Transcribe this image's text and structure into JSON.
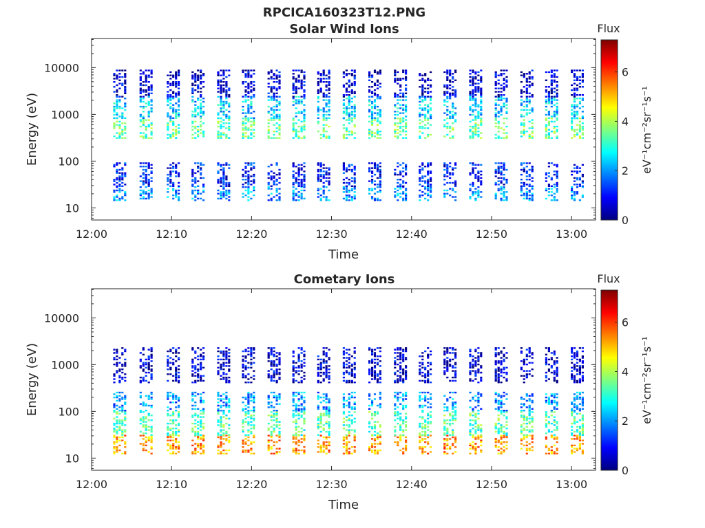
{
  "figure": {
    "title": "RPCICA160323T12.PNG"
  },
  "chart_data": [
    {
      "type": "heatmap",
      "title": "Solar Wind Ions",
      "xlabel": "Time",
      "ylabel": "Energy (eV)",
      "x_unit": "minutes after 12:00",
      "xlim": [
        0,
        63
      ],
      "x_ticks": [
        0,
        10,
        20,
        30,
        40,
        50,
        60
      ],
      "x_tick_labels": [
        "12:00",
        "12:10",
        "12:20",
        "12:30",
        "12:40",
        "12:50",
        "13:00"
      ],
      "y_scale": "log",
      "ylim": [
        5.5,
        42000
      ],
      "y_ticks": [
        10,
        100,
        1000,
        10000
      ],
      "y_tick_labels": [
        "10",
        "100",
        "1000",
        "10000"
      ],
      "colorbar": {
        "title": "Flux",
        "unit": "eV⁻¹cm⁻²sr⁻¹s⁻¹",
        "range": [
          0,
          7.3
        ],
        "ticks": [
          0,
          2,
          4,
          6
        ],
        "tick_labels": [
          "0",
          "2",
          "4",
          "6"
        ],
        "colormap": "jet"
      },
      "grid": false,
      "scan_times_min": [
        3.5,
        6.8,
        10.2,
        13.3,
        16.5,
        19.6,
        22.8,
        25.9,
        29.0,
        32.2,
        35.4,
        38.6,
        41.7,
        44.8,
        48.0,
        51.2,
        54.4,
        57.5,
        60.7
      ],
      "bands": [
        {
          "e_low": 14,
          "e_high": 28,
          "flux": 2.0
        },
        {
          "e_low": 28,
          "e_high": 90,
          "flux": 1.0
        },
        {
          "e_low": 300,
          "e_high": 800,
          "flux": 3.4
        },
        {
          "e_low": 800,
          "e_high": 2300,
          "flux": 2.4
        },
        {
          "e_low": 2300,
          "e_high": 9000,
          "flux": 0.6
        }
      ]
    },
    {
      "type": "heatmap",
      "title": "Cometary Ions",
      "xlabel": "Time",
      "ylabel": "Energy (eV)",
      "x_unit": "minutes after 12:00",
      "xlim": [
        0,
        63
      ],
      "x_ticks": [
        0,
        10,
        20,
        30,
        40,
        50,
        60
      ],
      "x_tick_labels": [
        "12:00",
        "12:10",
        "12:20",
        "12:30",
        "12:40",
        "12:50",
        "13:00"
      ],
      "y_scale": "log",
      "ylim": [
        5.5,
        42000
      ],
      "y_ticks": [
        10,
        100,
        1000,
        10000
      ],
      "y_tick_labels": [
        "10",
        "100",
        "1000",
        "10000"
      ],
      "colorbar": {
        "title": "Flux",
        "unit": "eV⁻¹cm⁻²sr⁻¹s⁻¹",
        "range": [
          0,
          7.3
        ],
        "ticks": [
          0,
          2,
          4,
          6
        ],
        "tick_labels": [
          "0",
          "2",
          "4",
          "6"
        ],
        "colormap": "jet"
      },
      "grid": false,
      "scan_times_min": [
        3.5,
        6.8,
        10.2,
        13.3,
        16.5,
        19.6,
        22.8,
        25.9,
        29.0,
        32.2,
        35.4,
        38.6,
        41.7,
        44.8,
        48.0,
        51.2,
        54.4,
        57.5,
        60.7
      ],
      "bands": [
        {
          "e_low": 12,
          "e_high": 30,
          "flux": 5.3
        },
        {
          "e_low": 30,
          "e_high": 100,
          "flux": 3.3
        },
        {
          "e_low": 100,
          "e_high": 250,
          "flux": 2.0
        },
        {
          "e_low": 400,
          "e_high": 2300,
          "flux": 0.6
        }
      ]
    }
  ]
}
